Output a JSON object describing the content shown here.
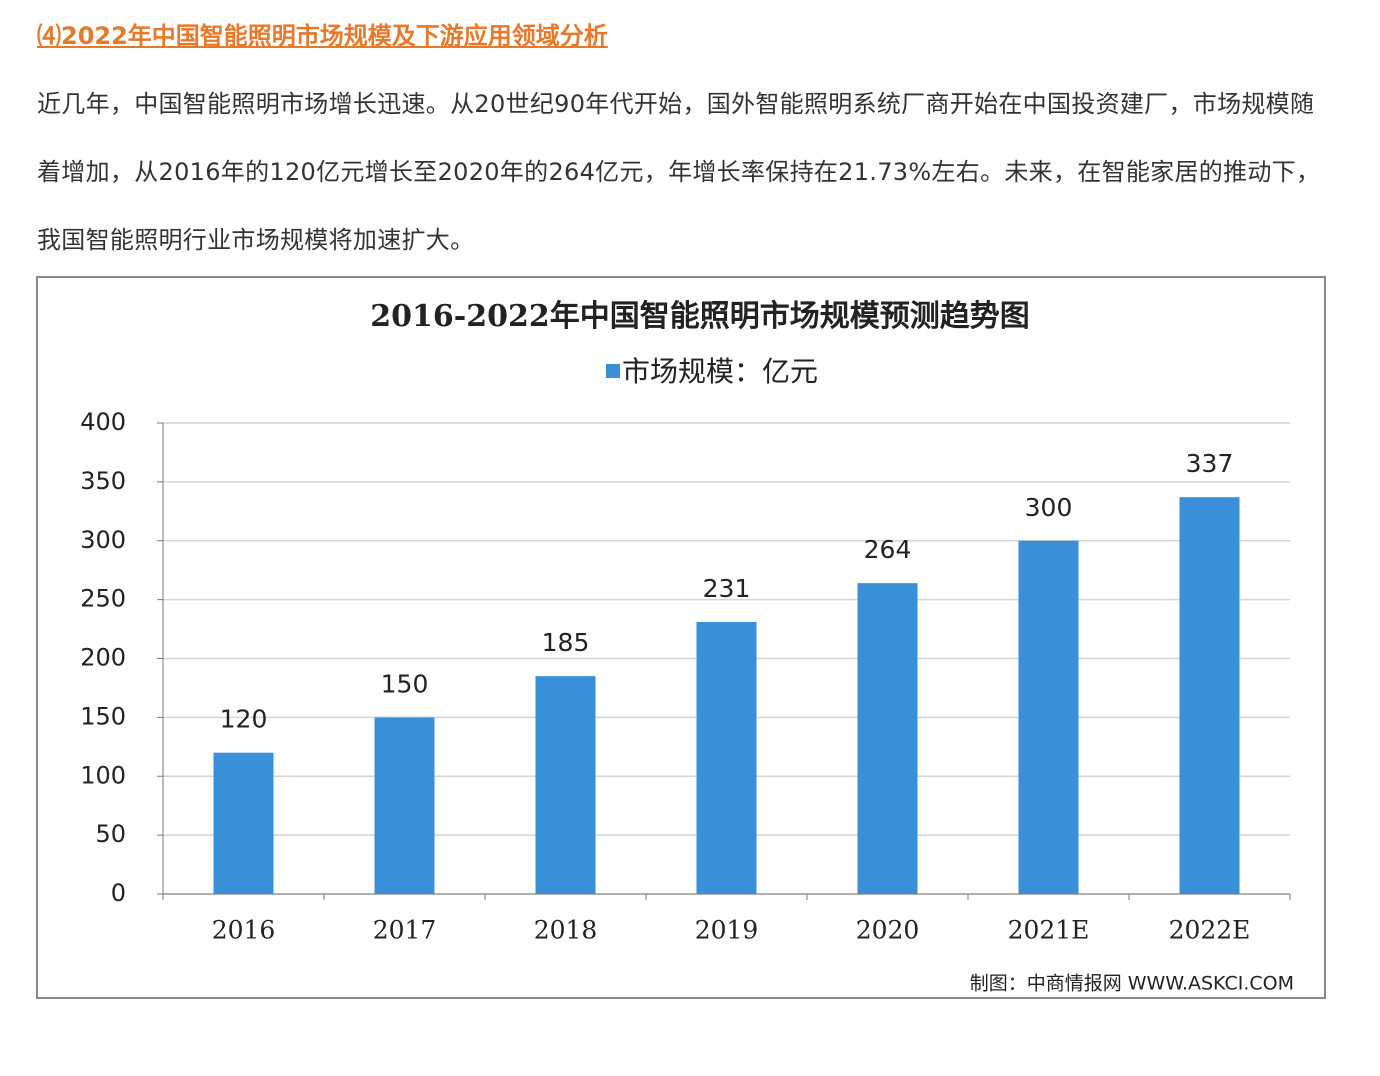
{
  "heading": "⑷2022年中国智能照明市场规模及下游应用领域分析",
  "paragraph": "近几年，中国智能照明市场增长迅速。从20世纪90年代开始，国外智能照明系统厂商开始在中国投资建厂，市场规模随着增加，从2016年的120亿元增长至2020年的264亿元，年增长率保持在21.73%左右。未来，在智能家居的推动下，我国智能照明行业市场规模将加速扩大。",
  "chart_data": {
    "type": "bar",
    "title": "2016-2022年中国智能照明市场规模预测趋势图",
    "categories": [
      "2016",
      "2017",
      "2018",
      "2019",
      "2020",
      "2021E",
      "2022E"
    ],
    "series": [
      {
        "name": "市场规模：亿元",
        "color": "#3a8fd9",
        "values": [
          120,
          150,
          185,
          231,
          264,
          300,
          337
        ]
      }
    ],
    "ylim": [
      0,
      400
    ],
    "yticks": [
      0,
      50,
      100,
      150,
      200,
      250,
      300,
      350,
      400
    ],
    "grid": true,
    "source": "制图：中商情报网 WWW.ASKCI.COM"
  }
}
